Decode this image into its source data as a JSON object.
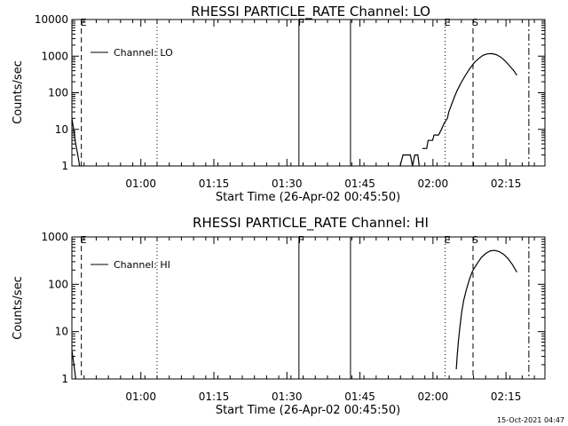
{
  "footer_timestamp": "15-Oct-2021 04:47",
  "chart_data": [
    {
      "type": "line",
      "title": "RHESSI PARTICLE_RATE Channel: LO",
      "xlabel": "Start Time (26-Apr-02 00:45:50)",
      "ylabel": "Counts/sec",
      "yscale": "log",
      "ylim": [
        1,
        10000
      ],
      "yticks": [
        {
          "value": 1,
          "label": "1"
        },
        {
          "value": 10,
          "label": "10"
        },
        {
          "value": 100,
          "label": "100"
        },
        {
          "value": 1000,
          "label": "1000"
        },
        {
          "value": 10000,
          "label": "10000"
        }
      ],
      "xticks": [
        "01:00",
        "01:15",
        "01:30",
        "01:45",
        "02:00",
        "02:15"
      ],
      "legend": {
        "label": "Channel: LO",
        "placement": "top-left"
      },
      "markers": [
        {
          "label": "E",
          "style": "dashed"
        },
        {
          "label": "",
          "style": "dotted"
        },
        {
          "label": "F",
          "style": "solid"
        },
        {
          "label": "",
          "style": "solid"
        },
        {
          "label": "E",
          "style": "dotted"
        },
        {
          "label": "S",
          "style": "dashed"
        },
        {
          "label": "",
          "style": "dashdot"
        }
      ],
      "series": [
        {
          "segments": [
            [
              [
                0.0,
                20
              ],
              [
                0.6,
                10
              ],
              [
                1.3,
                4
              ],
              [
                2.0,
                2
              ],
              [
                2.6,
                1
              ]
            ],
            [
              [
                111.0,
                1
              ],
              [
                112.0,
                2
              ],
              [
                114.5,
                2
              ],
              [
                115.2,
                1
              ],
              [
                116.0,
                2
              ],
              [
                117.0,
                2
              ],
              [
                117.5,
                1
              ]
            ],
            [
              [
                118.5,
                3
              ],
              [
                120.0,
                3
              ],
              [
                120.5,
                5
              ],
              [
                122.0,
                5
              ],
              [
                122.5,
                7
              ],
              [
                124.0,
                7
              ],
              [
                125.0,
                10
              ],
              [
                126.0,
                15
              ],
              [
                127.0,
                20
              ],
              [
                127.5,
                30
              ],
              [
                128.3,
                45
              ],
              [
                129.2,
                70
              ],
              [
                130.2,
                110
              ],
              [
                131.5,
                180
              ],
              [
                133.0,
                290
              ],
              [
                134.5,
                450
              ],
              [
                136.0,
                650
              ],
              [
                137.5,
                850
              ],
              [
                139.0,
                1050
              ],
              [
                140.5,
                1150
              ],
              [
                142.0,
                1170
              ],
              [
                143.5,
                1100
              ],
              [
                145.0,
                950
              ],
              [
                146.5,
                750
              ],
              [
                148.0,
                550
              ],
              [
                149.5,
                400
              ],
              [
                150.5,
                300
              ]
            ]
          ]
        }
      ]
    },
    {
      "type": "line",
      "title": "RHESSI PARTICLE_RATE Channel: HI",
      "xlabel": "Start Time (26-Apr-02 00:45:50)",
      "ylabel": "Counts/sec",
      "yscale": "log",
      "ylim": [
        1,
        1000
      ],
      "yticks": [
        {
          "value": 1,
          "label": "1"
        },
        {
          "value": 10,
          "label": "10"
        },
        {
          "value": 100,
          "label": "100"
        },
        {
          "value": 1000,
          "label": "1000"
        }
      ],
      "xticks": [
        "01:00",
        "01:15",
        "01:30",
        "01:45",
        "02:00",
        "02:15"
      ],
      "legend": {
        "label": "Channel: HI",
        "placement": "top-left"
      },
      "markers": [
        {
          "label": "E",
          "style": "dashed"
        },
        {
          "label": "",
          "style": "dotted"
        },
        {
          "label": "F",
          "style": "solid"
        },
        {
          "label": "",
          "style": "solid"
        },
        {
          "label": "E",
          "style": "dotted"
        },
        {
          "label": "S",
          "style": "dashed"
        },
        {
          "label": "",
          "style": "dashdot"
        }
      ],
      "series": [
        {
          "segments": [
            [
              [
                0.0,
                4
              ],
              [
                0.7,
                2
              ],
              [
                1.3,
                1
              ]
            ],
            [
              [
                130.0,
                1.6
              ],
              [
                130.3,
                3
              ],
              [
                130.7,
                6
              ],
              [
                131.2,
                12
              ],
              [
                131.8,
                25
              ],
              [
                132.5,
                45
              ],
              [
                133.5,
                80
              ],
              [
                134.5,
                130
              ],
              [
                135.5,
                190
              ],
              [
                137.0,
                270
              ],
              [
                138.5,
                370
              ],
              [
                140.0,
                450
              ],
              [
                141.5,
                510
              ],
              [
                143.0,
                520
              ],
              [
                144.5,
                490
              ],
              [
                146.0,
                430
              ],
              [
                147.5,
                350
              ],
              [
                149.0,
                260
              ],
              [
                150.5,
                180
              ]
            ]
          ]
        }
      ]
    }
  ]
}
